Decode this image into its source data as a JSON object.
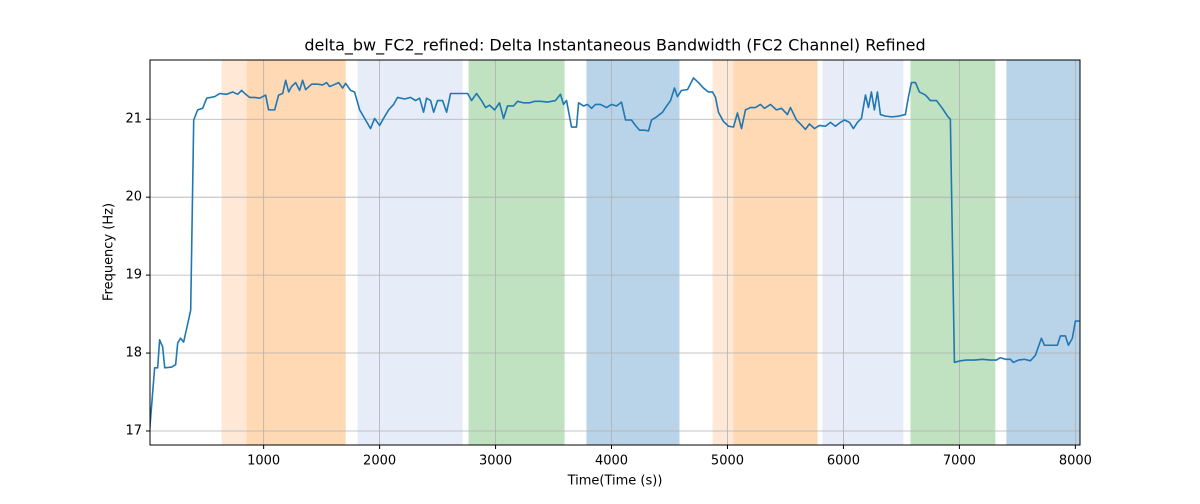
{
  "chart_data": {
    "type": "line",
    "title": "delta_bw_FC2_refined: Delta Instantaneous Bandwidth (FC2 Channel) Refined",
    "xlabel": "Time(Time (s))",
    "ylabel": "Frequency (Hz)",
    "xlim": [
      20,
      8040
    ],
    "ylim": [
      16.82,
      21.76
    ],
    "xticks": [
      1000,
      2000,
      3000,
      4000,
      5000,
      6000,
      7000,
      8000
    ],
    "yticks": [
      17,
      18,
      19,
      20,
      21
    ],
    "grid": true,
    "spans": [
      {
        "start": 638,
        "end": 1707,
        "color": "#ffe8d6"
      },
      {
        "start": 853,
        "end": 1707,
        "color": "#ffd8b4"
      },
      {
        "start": 1810,
        "end": 2716,
        "color": "#e6edf8"
      },
      {
        "start": 2767,
        "end": 3595,
        "color": "#c0e2c0"
      },
      {
        "start": 3784,
        "end": 4586,
        "color": "#b9d4e8"
      },
      {
        "start": 4871,
        "end": 5776,
        "color": "#ffe8d6"
      },
      {
        "start": 5052,
        "end": 5776,
        "color": "#ffd8b4"
      },
      {
        "start": 5819,
        "end": 6517,
        "color": "#e6edf8"
      },
      {
        "start": 6578,
        "end": 7310,
        "color": "#c0e2c0"
      },
      {
        "start": 7405,
        "end": 8040,
        "color": "#b9d4e8"
      }
    ],
    "series": [
      {
        "color": "#1f77b4",
        "x": [
          17,
          60,
          86,
          103,
          129,
          147,
          207,
          241,
          259,
          284,
          310,
          371,
          397,
          431,
          474,
          509,
          578,
          621,
          681,
          733,
          776,
          810,
          845,
          879,
          922,
          966,
          1017,
          1043,
          1095,
          1129,
          1164,
          1190,
          1216,
          1241,
          1276,
          1310,
          1336,
          1362,
          1414,
          1466,
          1509,
          1543,
          1569,
          1603,
          1647,
          1681,
          1707,
          1750,
          1784,
          1828,
          1879,
          1922,
          1957,
          2000,
          2034,
          2078,
          2121,
          2155,
          2216,
          2267,
          2310,
          2345,
          2379,
          2405,
          2440,
          2466,
          2500,
          2543,
          2578,
          2612,
          2707,
          2759,
          2793,
          2836,
          2879,
          2914,
          2948,
          2991,
          3034,
          3069,
          3103,
          3155,
          3190,
          3241,
          3293,
          3336,
          3388,
          3448,
          3517,
          3560,
          3586,
          3612,
          3655,
          3698,
          3716,
          3759,
          3793,
          3828,
          3862,
          3905,
          3957,
          4000,
          4043,
          4086,
          4121,
          4172,
          4207,
          4241,
          4284,
          4319,
          4345,
          4388,
          4440,
          4466,
          4509,
          4543,
          4569,
          4603,
          4655,
          4707,
          4750,
          4793,
          4836,
          4871,
          4897,
          4922,
          4966,
          5009,
          5052,
          5086,
          5121,
          5155,
          5198,
          5241,
          5284,
          5319,
          5371,
          5422,
          5466,
          5517,
          5543,
          5595,
          5629,
          5672,
          5707,
          5750,
          5793,
          5845,
          5888,
          5931,
          5974,
          6009,
          6052,
          6086,
          6121,
          6155,
          6190,
          6216,
          6241,
          6267,
          6293,
          6319,
          6362,
          6422,
          6474,
          6534,
          6560,
          6586,
          6621,
          6655,
          6707,
          6750,
          6802,
          6853,
          6897,
          6922,
          6957,
          7009,
          7060,
          7129,
          7198,
          7267,
          7319,
          7353,
          7397,
          7440,
          7466,
          7509,
          7560,
          7612,
          7655,
          7707,
          7733,
          7793,
          7845,
          7871,
          7914,
          7940,
          7974,
          8000,
          8034
        ],
        "values": [
          17.01,
          17.81,
          17.81,
          18.17,
          18.08,
          17.81,
          17.82,
          17.85,
          18.13,
          18.19,
          18.14,
          18.55,
          20.99,
          21.12,
          21.14,
          21.27,
          21.29,
          21.33,
          21.32,
          21.35,
          21.32,
          21.37,
          21.32,
          21.28,
          21.28,
          21.27,
          21.31,
          21.12,
          21.12,
          21.31,
          21.33,
          21.5,
          21.35,
          21.42,
          21.47,
          21.37,
          21.5,
          21.38,
          21.45,
          21.45,
          21.44,
          21.47,
          21.42,
          21.44,
          21.47,
          21.4,
          21.46,
          21.37,
          21.35,
          21.12,
          20.99,
          20.88,
          21.01,
          20.92,
          21.01,
          21.12,
          21.19,
          21.28,
          21.26,
          21.28,
          21.24,
          21.27,
          21.09,
          21.27,
          21.24,
          21.09,
          21.24,
          21.24,
          21.09,
          21.33,
          21.33,
          21.33,
          21.24,
          21.33,
          21.24,
          21.15,
          21.18,
          21.12,
          21.21,
          21.01,
          21.17,
          21.17,
          21.23,
          21.21,
          21.21,
          21.23,
          21.23,
          21.22,
          21.24,
          21.32,
          21.19,
          21.24,
          20.9,
          20.9,
          21.21,
          21.17,
          21.19,
          21.14,
          21.19,
          21.19,
          21.15,
          21.19,
          21.17,
          21.22,
          20.99,
          20.99,
          20.92,
          20.86,
          20.86,
          20.85,
          20.99,
          21.03,
          21.09,
          21.15,
          21.24,
          21.4,
          21.29,
          21.37,
          21.38,
          21.53,
          21.47,
          21.4,
          21.35,
          21.35,
          21.28,
          21.09,
          20.97,
          20.91,
          20.9,
          21.08,
          20.88,
          21.12,
          21.15,
          21.15,
          21.19,
          21.14,
          21.19,
          21.12,
          21.14,
          21.06,
          21.15,
          20.99,
          20.94,
          20.87,
          20.94,
          20.88,
          20.92,
          20.91,
          20.96,
          20.91,
          20.96,
          20.99,
          20.96,
          20.88,
          20.96,
          21.01,
          21.31,
          21.15,
          21.35,
          21.12,
          21.35,
          21.06,
          21.04,
          21.03,
          21.04,
          21.06,
          21.28,
          21.47,
          21.47,
          21.35,
          21.31,
          21.24,
          21.24,
          21.14,
          21.04,
          21.0,
          17.88,
          17.9,
          17.91,
          17.91,
          17.92,
          17.91,
          17.91,
          17.94,
          17.92,
          17.92,
          17.88,
          17.91,
          17.92,
          17.9,
          17.97,
          18.19,
          18.1,
          18.1,
          18.1,
          18.22,
          18.22,
          18.1,
          18.19,
          18.41,
          18.41
        ]
      }
    ]
  }
}
